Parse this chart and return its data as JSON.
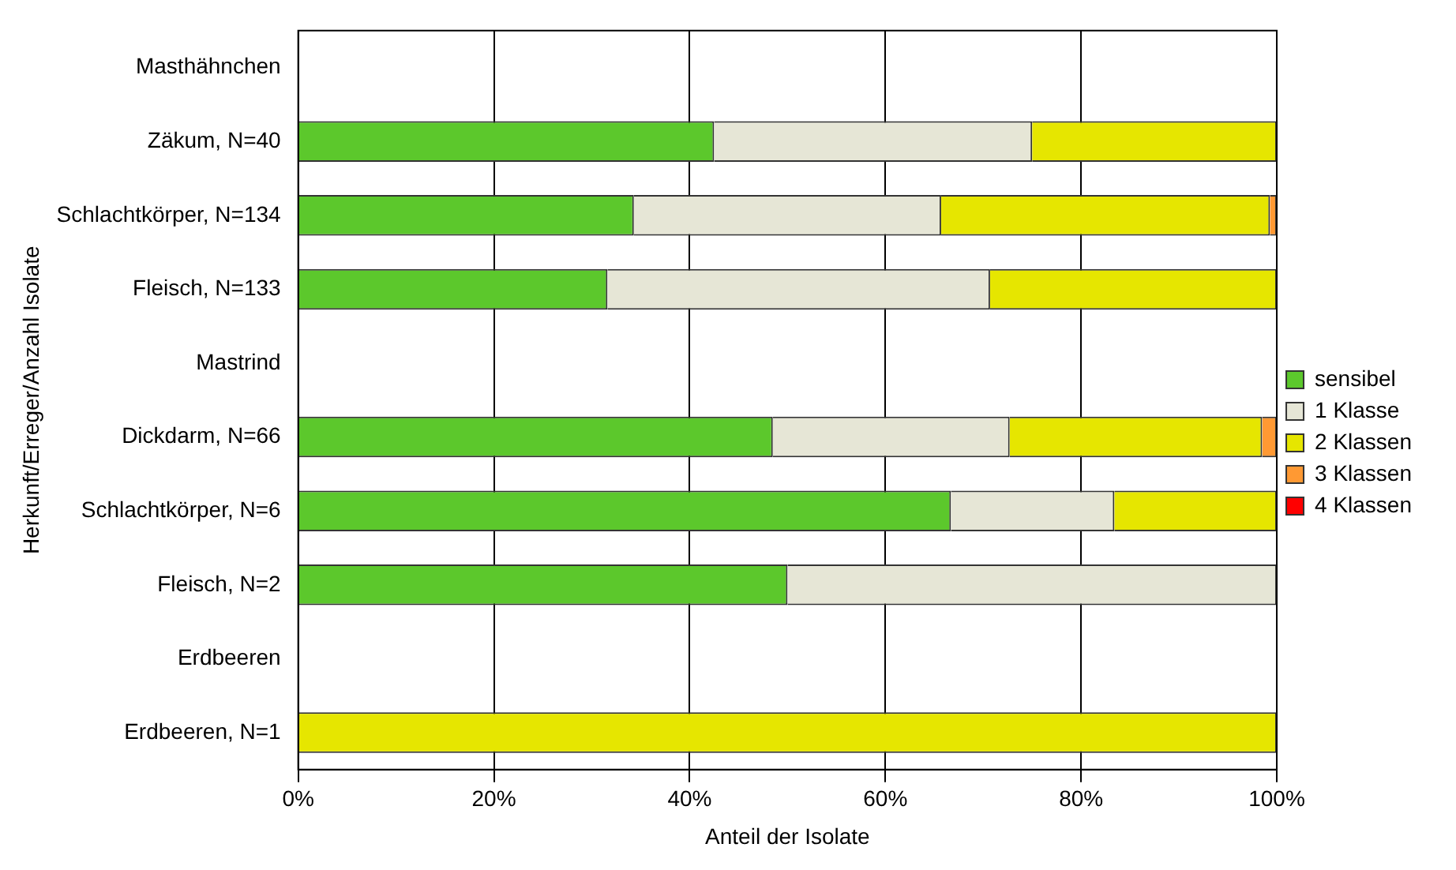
{
  "chart_data": {
    "type": "bar",
    "orientation": "horizontal",
    "stacked": true,
    "xlabel": "Anteil der Isolate",
    "ylabel": "Herkunft/Erreger/Anzahl Isolate",
    "categories": [
      "Masthähnchen",
      "Zäkum, N=40",
      "Schlachtkörper, N=134",
      "Fleisch, N=133",
      "Mastrind",
      "Dickdarm, N=66",
      "Schlachtkörper, N=6",
      "Fleisch, N=2",
      "Erdbeeren",
      "Erdbeeren, N=1"
    ],
    "series": [
      {
        "name": "sensibel",
        "color": "#5cc82c",
        "values": [
          null,
          42.5,
          34.3,
          31.6,
          null,
          48.5,
          66.7,
          50,
          null,
          0
        ]
      },
      {
        "name": "1 Klasse",
        "color": "#e6e6d6",
        "values": [
          null,
          32.5,
          31.4,
          39.1,
          null,
          24.2,
          16.7,
          50,
          null,
          0
        ]
      },
      {
        "name": "2 Klassen",
        "color": "#e6e600",
        "values": [
          null,
          25,
          33.6,
          29.3,
          null,
          25.8,
          16.6,
          0,
          null,
          100
        ]
      },
      {
        "name": "3 Klassen",
        "color": "#ff9933",
        "values": [
          null,
          0,
          0.7,
          0,
          null,
          1.5,
          0,
          0,
          null,
          0
        ]
      },
      {
        "name": "4 Klassen",
        "color": "#ff0000",
        "values": [
          null,
          0,
          0,
          0,
          null,
          0,
          0,
          0,
          null,
          0
        ]
      }
    ],
    "xlim": [
      0,
      100
    ],
    "xticks": [
      {
        "value": 0,
        "label": "0%"
      },
      {
        "value": 20,
        "label": "20%"
      },
      {
        "value": 40,
        "label": "40%"
      },
      {
        "value": 60,
        "label": "60%"
      },
      {
        "value": 80,
        "label": "80%"
      },
      {
        "value": 100,
        "label": "100%"
      }
    ],
    "grid": "x",
    "legend": "right"
  }
}
